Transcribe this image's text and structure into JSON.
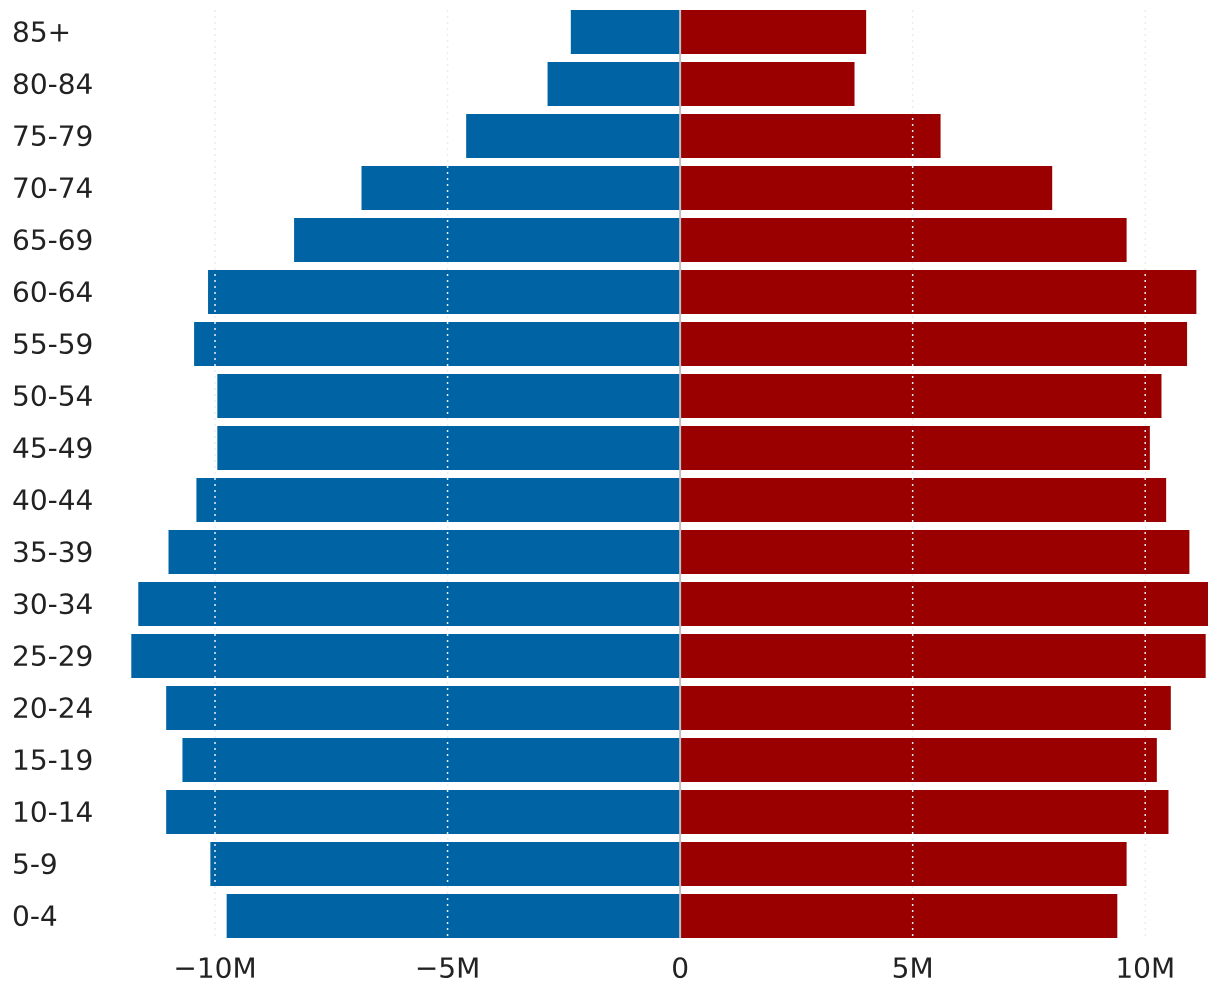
{
  "chart_data": {
    "type": "bar",
    "orientation": "horizontal",
    "layout": "population-pyramid",
    "categories": [
      "85+",
      "80-84",
      "75-79",
      "70-74",
      "65-69",
      "60-64",
      "55-59",
      "50-54",
      "45-49",
      "40-44",
      "35-39",
      "30-34",
      "25-29",
      "20-24",
      "15-19",
      "10-14",
      "5-9",
      "0-4"
    ],
    "series": [
      {
        "color": "#0063a4",
        "values": [
          -2.35,
          -2.85,
          -4.6,
          -6.85,
          -8.3,
          -10.15,
          -10.45,
          -9.95,
          -9.95,
          -10.4,
          -11.0,
          -11.65,
          -11.8,
          -11.05,
          -10.7,
          -11.05,
          -10.1,
          -9.75
        ]
      },
      {
        "color": "#9b0000",
        "values": [
          4.0,
          3.75,
          5.6,
          8.0,
          9.6,
          11.1,
          10.9,
          10.35,
          10.1,
          10.45,
          10.95,
          11.35,
          11.3,
          10.55,
          10.25,
          10.5,
          9.6,
          9.4
        ]
      }
    ],
    "xlim": [
      -12,
      11.35
    ],
    "xticks": [
      -10,
      -5,
      0,
      5,
      10
    ],
    "xtick_labels": [
      "−10M",
      "−5M",
      "0",
      "5M",
      "10M"
    ],
    "grid": true
  }
}
